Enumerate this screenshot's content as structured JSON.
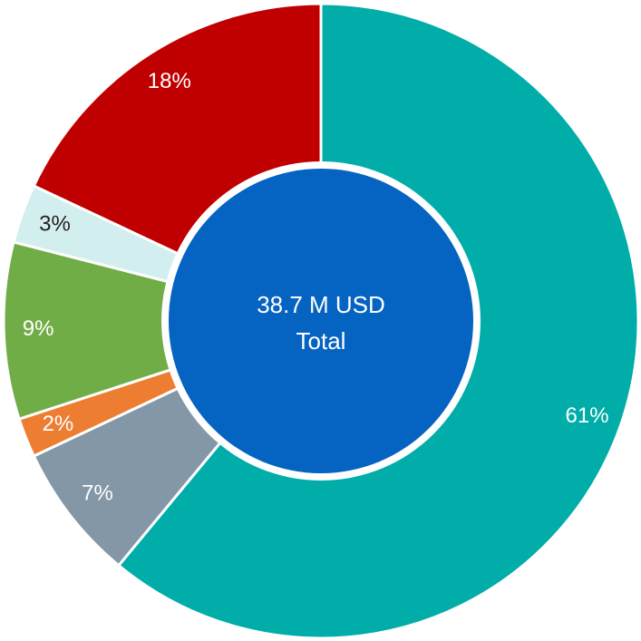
{
  "chart_data": {
    "type": "donut",
    "values": [
      61,
      7,
      2,
      9,
      3,
      18
    ],
    "value_labels": [
      "61%",
      "7%",
      "2%",
      "9%",
      "3%",
      "18%"
    ],
    "colors": [
      "#00ada9",
      "#8497a7",
      "#ed7d31",
      "#70ad47",
      "#d3eeee",
      "#c00000"
    ],
    "center_label": "38.7 M USD",
    "center_sublabel": "Total",
    "center_color": "#0563c1"
  }
}
